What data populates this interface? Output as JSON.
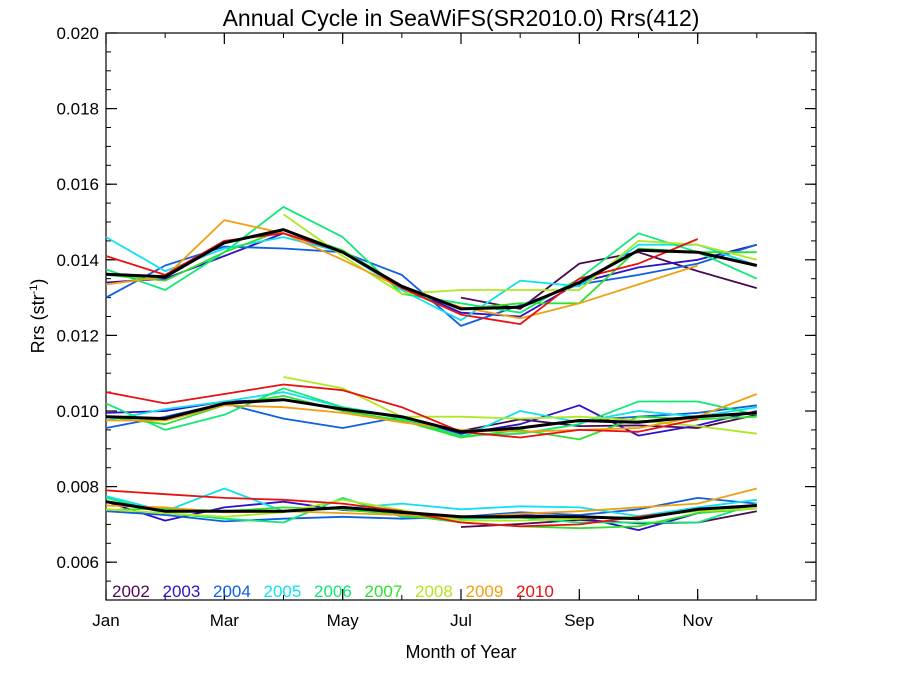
{
  "chart_data": {
    "type": "line",
    "title": "Annual Cycle in SeaWiFS(SR2010.0) Rrs(412)",
    "xlabel": "Month of Year",
    "ylabel": "Rrs (str",
    "ylabel_sup": "-1",
    "ylabel_tail": ")",
    "xlim": [
      1,
      13
    ],
    "ylim": [
      0.005,
      0.02
    ],
    "x_ticks": [
      {
        "x": 1,
        "label": "Jan"
      },
      {
        "x": 3,
        "label": "Mar"
      },
      {
        "x": 5,
        "label": "May"
      },
      {
        "x": 7,
        "label": "Jul"
      },
      {
        "x": 9,
        "label": "Sep"
      },
      {
        "x": 11,
        "label": "Nov"
      }
    ],
    "y_ticks": [
      {
        "y": 0.006,
        "label": "0.006"
      },
      {
        "y": 0.008,
        "label": "0.008"
      },
      {
        "y": 0.01,
        "label": "0.010"
      },
      {
        "y": 0.012,
        "label": "0.012"
      },
      {
        "y": 0.014,
        "label": "0.014"
      },
      {
        "y": 0.016,
        "label": "0.016"
      },
      {
        "y": 0.018,
        "label": "0.018"
      },
      {
        "y": 0.02,
        "label": "0.020"
      }
    ],
    "x": [
      1.0,
      2.0,
      3.0,
      4.0,
      5.0,
      6.0,
      7.0,
      8.0,
      9.0,
      10.0,
      11.0,
      12.0
    ],
    "legend_placement": "bottom-left",
    "series": [
      {
        "name": "2002",
        "color": "#4b0a55",
        "mean": false,
        "groups": [
          [
            null,
            null,
            null,
            null,
            null,
            null,
            0.00693,
            0.00701,
            0.00712,
            0.00703,
            0.00705,
            0.00735
          ],
          [
            null,
            null,
            null,
            null,
            null,
            null,
            0.00947,
            0.00978,
            0.0096,
            0.00962,
            0.00955,
            0.0099
          ],
          [
            null,
            null,
            null,
            null,
            null,
            null,
            0.013,
            0.0127,
            0.0139,
            0.0142,
            0.0137,
            0.01325
          ]
        ]
      },
      {
        "name": "2003",
        "color": "#3010c8",
        "mean": false,
        "groups": [
          [
            0.0076,
            0.0071,
            0.00745,
            0.0076,
            0.00738,
            0.0073,
            0.00715,
            0.00725,
            0.0072,
            0.00685,
            0.0073,
            0.0075
          ],
          [
            0.00995,
            0.01,
            0.01025,
            0.0103,
            0.01005,
            0.00985,
            0.0094,
            0.00965,
            0.01015,
            0.00935,
            0.00962,
            0.01
          ],
          [
            0.0134,
            0.0135,
            0.0141,
            0.0147,
            0.0142,
            0.0133,
            0.0126,
            0.0125,
            0.0134,
            0.0138,
            0.014,
            0.0144
          ]
        ]
      },
      {
        "name": "2004",
        "color": "#1060e0",
        "mean": false,
        "groups": [
          [
            0.00735,
            0.00725,
            0.00708,
            0.00715,
            0.0072,
            0.00715,
            0.0072,
            0.00732,
            0.00725,
            0.0074,
            0.0077,
            0.00755
          ],
          [
            0.00955,
            0.00985,
            0.0102,
            0.0098,
            0.00955,
            0.00985,
            0.00945,
            0.00955,
            0.00975,
            0.00985,
            0.00995,
            0.01015
          ],
          [
            0.013,
            0.01385,
            0.01435,
            0.0143,
            0.0142,
            0.0136,
            0.01225,
            0.0128,
            0.01335,
            0.0136,
            0.0139,
            0.0144
          ]
        ]
      },
      {
        "name": "2005",
        "color": "#10e0f0",
        "mean": false,
        "groups": [
          [
            0.00775,
            0.00735,
            0.00795,
            0.00735,
            0.00742,
            0.00755,
            0.0074,
            0.00748,
            0.00745,
            0.00722,
            0.00745,
            0.00765
          ],
          [
            0.00975,
            0.01005,
            0.01025,
            0.0105,
            0.0101,
            0.00985,
            0.0093,
            0.01,
            0.0097,
            0.01,
            0.00985,
            0.0101
          ],
          [
            0.0146,
            0.0137,
            0.0143,
            0.0146,
            0.0142,
            0.0132,
            0.0124,
            0.01345,
            0.0133,
            0.0144,
            0.0144,
            0.01385
          ]
        ]
      },
      {
        "name": "2006",
        "color": "#10e878",
        "mean": false,
        "groups": [
          [
            0.0077,
            0.0073,
            0.00715,
            0.00705,
            0.0077,
            0.0072,
            0.00715,
            0.00718,
            0.00705,
            0.00705,
            0.00705,
            0.00755
          ],
          [
            0.0102,
            0.0095,
            0.0099,
            0.0106,
            0.0101,
            0.0098,
            0.00935,
            0.0094,
            0.00965,
            0.01025,
            0.01025,
            0.0099
          ],
          [
            0.01375,
            0.0132,
            0.0142,
            0.0154,
            0.0146,
            0.0131,
            0.01285,
            0.0126,
            0.0135,
            0.0147,
            0.0142,
            0.0135
          ]
        ]
      },
      {
        "name": "2007",
        "color": "#30e030",
        "mean": false,
        "groups": [
          [
            0.00738,
            0.00742,
            0.00735,
            0.00745,
            0.0074,
            0.00725,
            0.00705,
            0.00695,
            0.0069,
            0.00695,
            0.0073,
            0.00742
          ],
          [
            0.00985,
            0.00965,
            0.01015,
            0.0104,
            0.01,
            0.00975,
            0.0093,
            0.0095,
            0.00925,
            0.00985,
            0.00978,
            0.00985
          ],
          [
            0.0136,
            0.01345,
            0.0142,
            0.0148,
            0.01425,
            0.0133,
            0.0127,
            0.01285,
            0.01285,
            0.0143,
            0.0142,
            0.0142
          ]
        ]
      },
      {
        "name": "2008",
        "color": "#b0e820",
        "mean": false,
        "groups": [
          [
            0.0074,
            0.0073,
            0.0072,
            0.00732,
            0.00765,
            0.00738,
            0.0071,
            0.0071,
            0.00715,
            0.0072,
            0.00735,
            0.00742
          ],
          [
            null,
            null,
            null,
            0.0109,
            0.0106,
            0.00985,
            0.00985,
            0.0098,
            0.00985,
            0.00975,
            0.0096,
            0.0094
          ],
          [
            null,
            null,
            null,
            0.0152,
            0.0141,
            0.0131,
            0.0132,
            0.0132,
            0.0132,
            0.0145,
            0.0144,
            0.014
          ]
        ]
      },
      {
        "name": "2009",
        "color": "#f0a010",
        "mean": false,
        "groups": [
          [
            0.0075,
            0.00745,
            0.00732,
            0.00735,
            0.0073,
            0.00725,
            0.00718,
            0.00728,
            0.00735,
            0.00745,
            0.00755,
            0.00795
          ],
          [
            0.00975,
            0.00975,
            0.01015,
            0.0101,
            0.00995,
            0.0097,
            0.0095,
            0.00945,
            0.0095,
            0.00955,
            0.00985,
            0.01045
          ],
          [
            0.01335,
            0.01355,
            0.01505,
            0.0147,
            0.014,
            0.01325,
            0.01275,
            0.01245,
            0.01285,
            0.01335,
            0.01385,
            null
          ]
        ]
      },
      {
        "name": "2010",
        "color": "#e81010",
        "mean": false,
        "groups": [
          [
            0.0079,
            0.0078,
            0.0077,
            0.00765,
            0.00755,
            0.00735,
            0.00705,
            0.00695,
            0.007,
            0.0072,
            0.00738,
            null
          ],
          [
            0.0105,
            0.0102,
            0.01045,
            0.0107,
            0.01055,
            0.0101,
            0.00945,
            0.0093,
            0.0095,
            0.00945,
            0.00978,
            null
          ],
          [
            0.0141,
            0.0136,
            0.0145,
            0.0147,
            0.0142,
            0.01325,
            0.01255,
            0.0123,
            0.0135,
            0.0139,
            0.01455,
            null
          ]
        ]
      },
      {
        "name": "",
        "color": "#000000",
        "mean": true,
        "groups": [
          [
            0.0076,
            0.00735,
            0.00735,
            0.00735,
            0.00745,
            0.00732,
            0.0072,
            0.0072,
            0.0072,
            0.00715,
            0.0074,
            0.0075
          ],
          [
            0.00985,
            0.0098,
            0.0102,
            0.0103,
            0.01005,
            0.00985,
            0.00945,
            0.00955,
            0.00975,
            0.0097,
            0.00985,
            0.00995
          ],
          [
            0.01362,
            0.01355,
            0.01445,
            0.0148,
            0.0142,
            0.0133,
            0.0127,
            0.01275,
            0.0134,
            0.01425,
            0.0142,
            0.01385
          ]
        ]
      }
    ]
  }
}
